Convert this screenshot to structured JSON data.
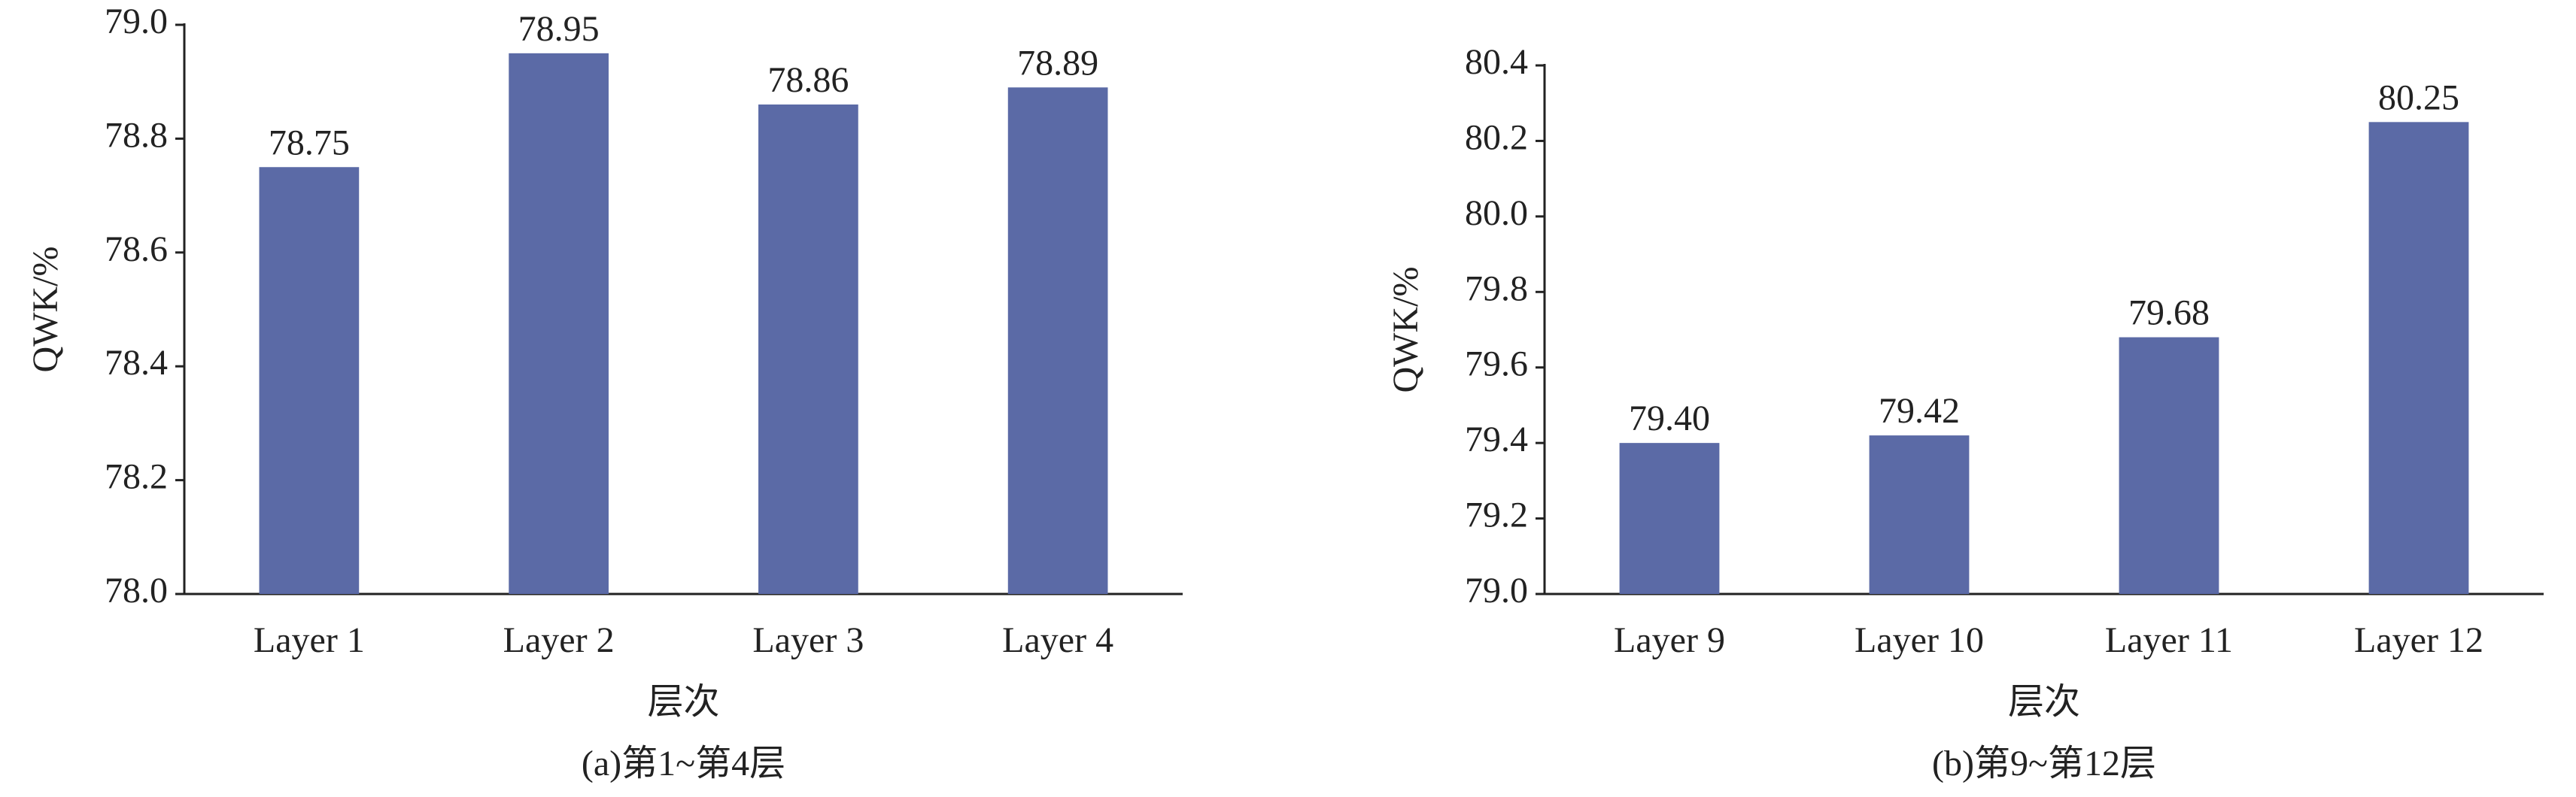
{
  "chart_data": [
    {
      "type": "bar",
      "ylabel": "QWK/%",
      "xlabel": "层次",
      "caption": "(a)第1~第4层",
      "categories": [
        "Layer 1",
        "Layer 2",
        "Layer 3",
        "Layer 4"
      ],
      "values": [
        78.75,
        78.95,
        78.86,
        78.89
      ],
      "color": "#5b6aa6",
      "ylim": [
        78.0,
        79.0
      ],
      "yticks": [
        {
          "value": 78,
          "label": "78.0"
        },
        78.2,
        78.4,
        78.6,
        78.8,
        {
          "value": 79,
          "label": "79.0"
        }
      ]
    },
    {
      "type": "bar",
      "ylabel": "QWK/%",
      "xlabel": "层次",
      "caption": "(b)第9~第12层",
      "categories": [
        "Layer 9",
        "Layer 10",
        "Layer 11",
        "Layer 12"
      ],
      "values": [
        79.4,
        79.42,
        79.68,
        80.25
      ],
      "value_labels": [
        "79.40",
        "79.42",
        "79.68",
        "80.25"
      ],
      "color": "#5b6aa6",
      "ylim": [
        79.0,
        80.4
      ],
      "yticks": [
        {
          "value": 79,
          "label": "79.0"
        },
        79.2,
        79.4,
        79.6,
        79.8,
        {
          "value": 80,
          "label": "80.0"
        },
        80.2,
        80.4
      ]
    }
  ]
}
